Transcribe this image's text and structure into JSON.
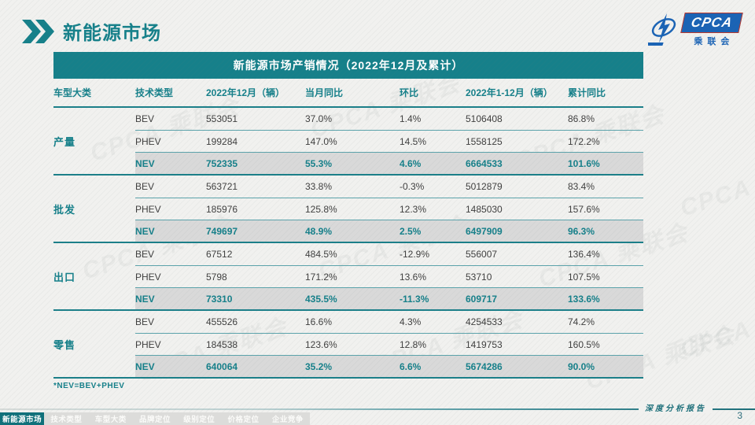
{
  "page": {
    "title": "新能源市场",
    "page_number": "3",
    "footer_tagline": "深度分析报告",
    "watermark_text": "CPCA 乘联会"
  },
  "logo": {
    "name": "CPCA",
    "sub": "乘联会"
  },
  "colors": {
    "teal": "#16808A",
    "teal_dark": "#10707A",
    "highlight_band": "#D9D9D9",
    "logo_blue": "#1A63B5",
    "logo_red": "#C03A2B",
    "background": "#F1F1EF"
  },
  "table": {
    "title": "新能源市场产销情况（2022年12月及累计）",
    "columns": [
      "车型大类",
      "技术类型",
      "2022年12月（辆）",
      "当月同比",
      "环比",
      "2022年1-12月（辆）",
      "累计同比"
    ],
    "footnote": "*NEV=BEV+PHEV",
    "groups": [
      {
        "label": "产量",
        "rows": [
          {
            "tech": "BEV",
            "month": "553051",
            "yoy": "37.0%",
            "mom": "1.4%",
            "cum": "5106408",
            "cum_yoy": "86.8%",
            "highlight": false
          },
          {
            "tech": "PHEV",
            "month": "199284",
            "yoy": "147.0%",
            "mom": "14.5%",
            "cum": "1558125",
            "cum_yoy": "172.2%",
            "highlight": false
          },
          {
            "tech": "NEV",
            "month": "752335",
            "yoy": "55.3%",
            "mom": "4.6%",
            "cum": "6664533",
            "cum_yoy": "101.6%",
            "highlight": true
          }
        ]
      },
      {
        "label": "批发",
        "rows": [
          {
            "tech": "BEV",
            "month": "563721",
            "yoy": "33.8%",
            "mom": "-0.3%",
            "cum": "5012879",
            "cum_yoy": "83.4%",
            "highlight": false
          },
          {
            "tech": "PHEV",
            "month": "185976",
            "yoy": "125.8%",
            "mom": "12.3%",
            "cum": "1485030",
            "cum_yoy": "157.6%",
            "highlight": false
          },
          {
            "tech": "NEV",
            "month": "749697",
            "yoy": "48.9%",
            "mom": "2.5%",
            "cum": "6497909",
            "cum_yoy": "96.3%",
            "highlight": true
          }
        ]
      },
      {
        "label": "出口",
        "rows": [
          {
            "tech": "BEV",
            "month": "67512",
            "yoy": "484.5%",
            "mom": "-12.9%",
            "cum": "556007",
            "cum_yoy": "136.4%",
            "highlight": false
          },
          {
            "tech": "PHEV",
            "month": "5798",
            "yoy": "171.2%",
            "mom": "13.6%",
            "cum": "53710",
            "cum_yoy": "107.5%",
            "highlight": false
          },
          {
            "tech": "NEV",
            "month": "73310",
            "yoy": "435.5%",
            "mom": "-11.3%",
            "cum": "609717",
            "cum_yoy": "133.6%",
            "highlight": true
          }
        ]
      },
      {
        "label": "零售",
        "rows": [
          {
            "tech": "BEV",
            "month": "455526",
            "yoy": "16.6%",
            "mom": "4.3%",
            "cum": "4254533",
            "cum_yoy": "74.2%",
            "highlight": false
          },
          {
            "tech": "PHEV",
            "month": "184538",
            "yoy": "123.6%",
            "mom": "12.8%",
            "cum": "1419753",
            "cum_yoy": "160.5%",
            "highlight": false
          },
          {
            "tech": "NEV",
            "month": "640064",
            "yoy": "35.2%",
            "mom": "6.6%",
            "cum": "5674286",
            "cum_yoy": "90.0%",
            "highlight": true
          }
        ]
      }
    ]
  },
  "footer_tabs": [
    {
      "label": "新能源市场",
      "active": true
    },
    {
      "label": "技术类型",
      "active": false
    },
    {
      "label": "车型大类",
      "active": false
    },
    {
      "label": "品牌定位",
      "active": false
    },
    {
      "label": "级别定位",
      "active": false
    },
    {
      "label": "价格定位",
      "active": false
    },
    {
      "label": "企业竞争",
      "active": false
    }
  ]
}
